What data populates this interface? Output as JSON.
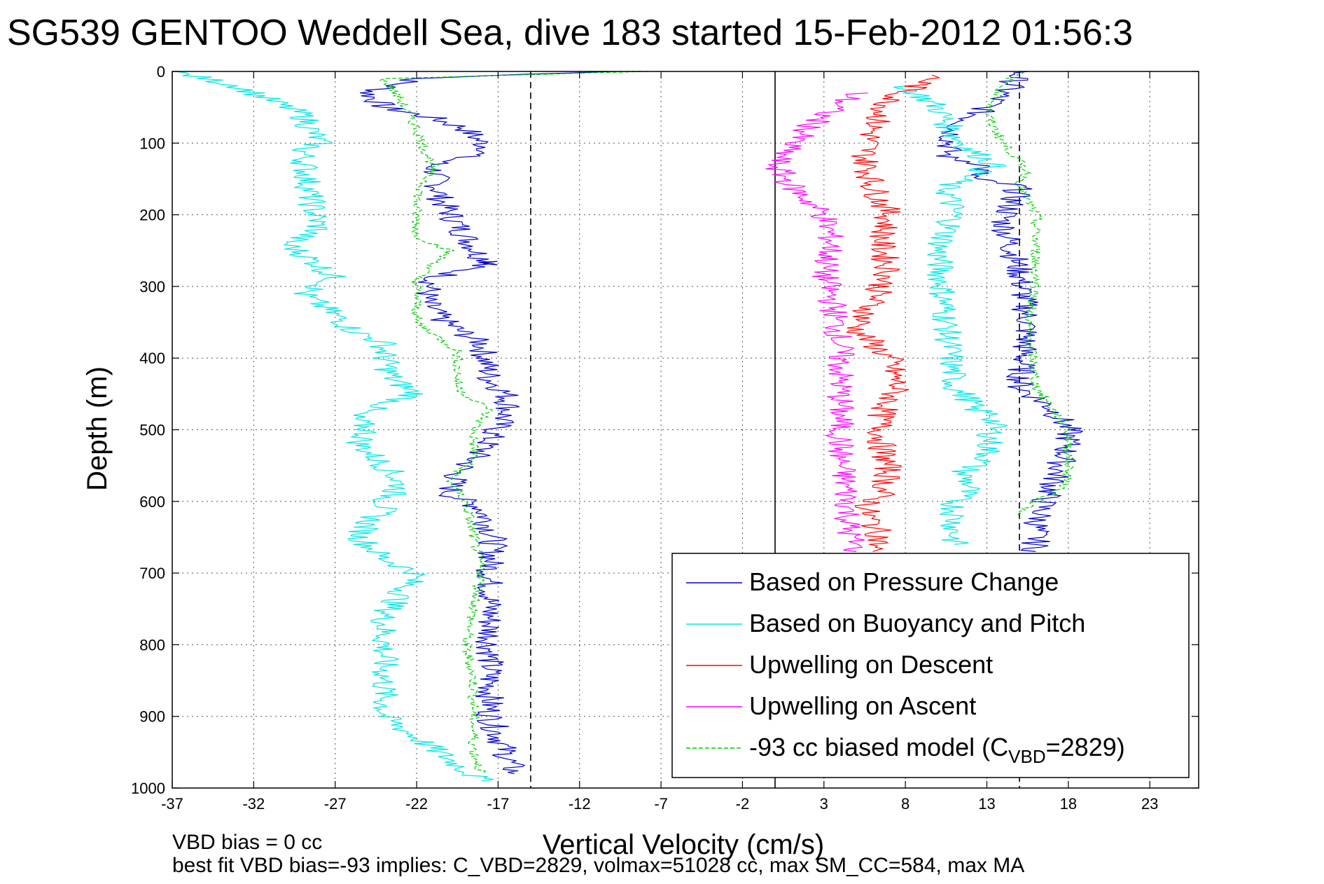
{
  "chart_data": {
    "type": "line",
    "title": "SG539 GENTOO Weddell Sea, dive 183 started 15-Feb-2012 01:56:3",
    "xlabel": "Vertical Velocity (cm/s)",
    "ylabel": "Depth (m)",
    "xlim": [
      -37,
      26
    ],
    "ylim": [
      1000,
      0
    ],
    "y_reversed": true,
    "grid": true,
    "xticks": [
      -37,
      -32,
      -27,
      -22,
      -17,
      -12,
      -7,
      -2,
      3,
      8,
      13,
      18,
      23
    ],
    "yticks": [
      0,
      100,
      200,
      300,
      400,
      500,
      600,
      700,
      800,
      900,
      1000
    ],
    "legend_placement": "bottom-right",
    "reference_lines": [
      {
        "x": -15,
        "style": "dashed",
        "color": "#000000"
      },
      {
        "x": 0,
        "style": "solid",
        "color": "#000000"
      },
      {
        "x": 15,
        "style": "dashed",
        "color": "#000000"
      }
    ],
    "series": [
      {
        "name": "Based on Pressure Change",
        "color": "#0000cc",
        "style": "solid",
        "segments": [
          {
            "x": [
              -10,
              -22,
              -25,
              -24,
              -21,
              -19,
              -17.5,
              -21,
              -20.5,
              -19,
              -18,
              -17,
              -17.5,
              -21,
              -21.5,
              -20.5,
              -19.5,
              -18,
              -17.5,
              -16.5,
              -16.3,
              -18,
              -19.5,
              -20,
              -18,
              -17.3,
              -17.5,
              -17.5,
              -17.5,
              -16
            ],
            "y": [
              0,
              10,
              30,
              50,
              65,
              80,
              110,
              130,
              180,
              230,
              260,
              270,
              265,
              290,
              320,
              345,
              360,
              380,
              430,
              450,
              470,
              530,
              560,
              590,
              610,
              650,
              700,
              800,
              900,
              980
            ]
          },
          {
            "x": [
              15,
              14.5,
              13,
              11,
              10.5,
              13,
              12,
              15,
              14,
              15,
              15.5,
              15,
              17,
              18,
              18,
              17.5,
              17,
              16.5,
              16,
              16,
              16
            ],
            "y": [
              0,
              20,
              50,
              80,
              120,
              130,
              150,
              160,
              210,
              280,
              350,
              440,
              470,
              500,
              520,
              550,
              580,
              600,
              640,
              660,
              670
            ]
          }
        ]
      },
      {
        "name": "Based on Buoyancy and Pitch",
        "color": "#00e5e5",
        "style": "solid",
        "segments": [
          {
            "x": [
              -37,
              -33,
              -31,
              -29,
              -28,
              -29,
              -28.5,
              -28,
              -30,
              -28,
              -27,
              -29,
              -27,
              -26,
              -24,
              -24,
              -23.5,
              -22,
              -26,
              -25,
              -25.5,
              -24.5,
              -23.5,
              -23,
              -24,
              -24,
              -25,
              -25.5,
              -24,
              -22,
              -24,
              -24,
              -24,
              -18
            ],
            "y": [
              0,
              20,
              40,
              60,
              100,
              110,
              180,
              220,
              240,
              270,
              290,
              310,
              340,
              360,
              380,
              400,
              430,
              450,
              480,
              500,
              520,
              540,
              560,
              580,
              600,
              610,
              630,
              650,
              680,
              700,
              760,
              800,
              900,
              990
            ]
          },
          {
            "x": [
              8,
              10,
              10.5,
              11,
              12,
              13.5,
              10.5,
              11,
              10,
              10.5,
              11,
              12,
              12,
              13.5,
              13,
              11.5,
              12,
              11,
              11,
              11
            ],
            "y": [
              20,
              50,
              70,
              90,
              110,
              130,
              160,
              200,
              250,
              350,
              440,
              460,
              470,
              480,
              540,
              560,
              580,
              600,
              640,
              660
            ]
          }
        ]
      },
      {
        "name": "Upwelling on Descent",
        "color": "#ff0000",
        "style": "solid",
        "segments": [
          {
            "x": [
              10,
              7,
              6,
              5.5,
              6,
              7,
              6.5,
              7,
              6,
              5,
              7,
              7.5,
              6.5,
              6.5,
              7,
              6.5,
              5.5,
              6,
              6.5,
              6
            ],
            "y": [
              5,
              40,
              80,
              120,
              160,
              200,
              240,
              280,
              320,
              360,
              400,
              440,
              480,
              520,
              560,
              590,
              610,
              630,
              650,
              670
            ]
          }
        ]
      },
      {
        "name": "Upwelling on Ascent",
        "color": "#ff00ff",
        "style": "solid",
        "segments": [
          {
            "x": [
              5,
              3,
              1,
              0,
              1,
              3,
              3.5,
              3,
              3.5,
              4,
              4,
              4,
              4,
              4.5,
              4.5,
              5
            ],
            "y": [
              30,
              60,
              100,
              130,
              160,
              200,
              240,
              280,
              320,
              380,
              420,
              480,
              540,
              600,
              640,
              670
            ]
          }
        ]
      },
      {
        "name": "-93 cc biased model (C_VBD=2829)",
        "color": "#00cc00",
        "style": "dashed",
        "segments": [
          {
            "x": [
              -8,
              -24,
              -23,
              -22,
              -21.5,
              -21,
              -22,
              -22,
              -20,
              -22,
              -22,
              -19.5,
              -19.5,
              -18.5,
              -17.5,
              -18.5,
              -18.5,
              -20,
              -19,
              -18.5,
              -18,
              -18.5,
              -19,
              -18.5,
              -18.5,
              -18
            ],
            "y": [
              0,
              10,
              40,
              80,
              110,
              130,
              180,
              230,
              250,
              290,
              350,
              390,
              440,
              460,
              470,
              500,
              540,
              570,
              600,
              650,
              700,
              750,
              800,
              850,
              950,
              980
            ]
          },
          {
            "x": [
              15,
              14,
              13,
              14,
              15.5,
              15,
              16,
              16,
              16,
              15.5,
              16,
              17,
              18,
              18,
              18,
              17,
              16,
              15
            ],
            "y": [
              0,
              20,
              60,
              100,
              140,
              160,
              200,
              250,
              300,
              350,
              440,
              470,
              500,
              540,
              570,
              590,
              600,
              620
            ]
          }
        ]
      }
    ],
    "legend_entries": [
      {
        "label": "Based on Pressure Change",
        "color": "#0000cc",
        "style": "solid"
      },
      {
        "label": "Based on Buoyancy and Pitch",
        "color": "#00e5e5",
        "style": "solid"
      },
      {
        "label": "Upwelling on Descent",
        "color": "#ff0000",
        "style": "solid"
      },
      {
        "label": "Upwelling on Ascent",
        "color": "#ff00ff",
        "style": "solid"
      },
      {
        "label": "-93 cc biased model (C",
        "sub": "VBD",
        "suffix": "=2829)",
        "color": "#00cc00",
        "style": "dashed"
      }
    ],
    "annotations": [
      "VBD bias = 0 cc",
      "best fit VBD bias=-93 implies: C_VBD=2829, volmax=51028 cc, max SM_CC=584, max MA"
    ]
  }
}
